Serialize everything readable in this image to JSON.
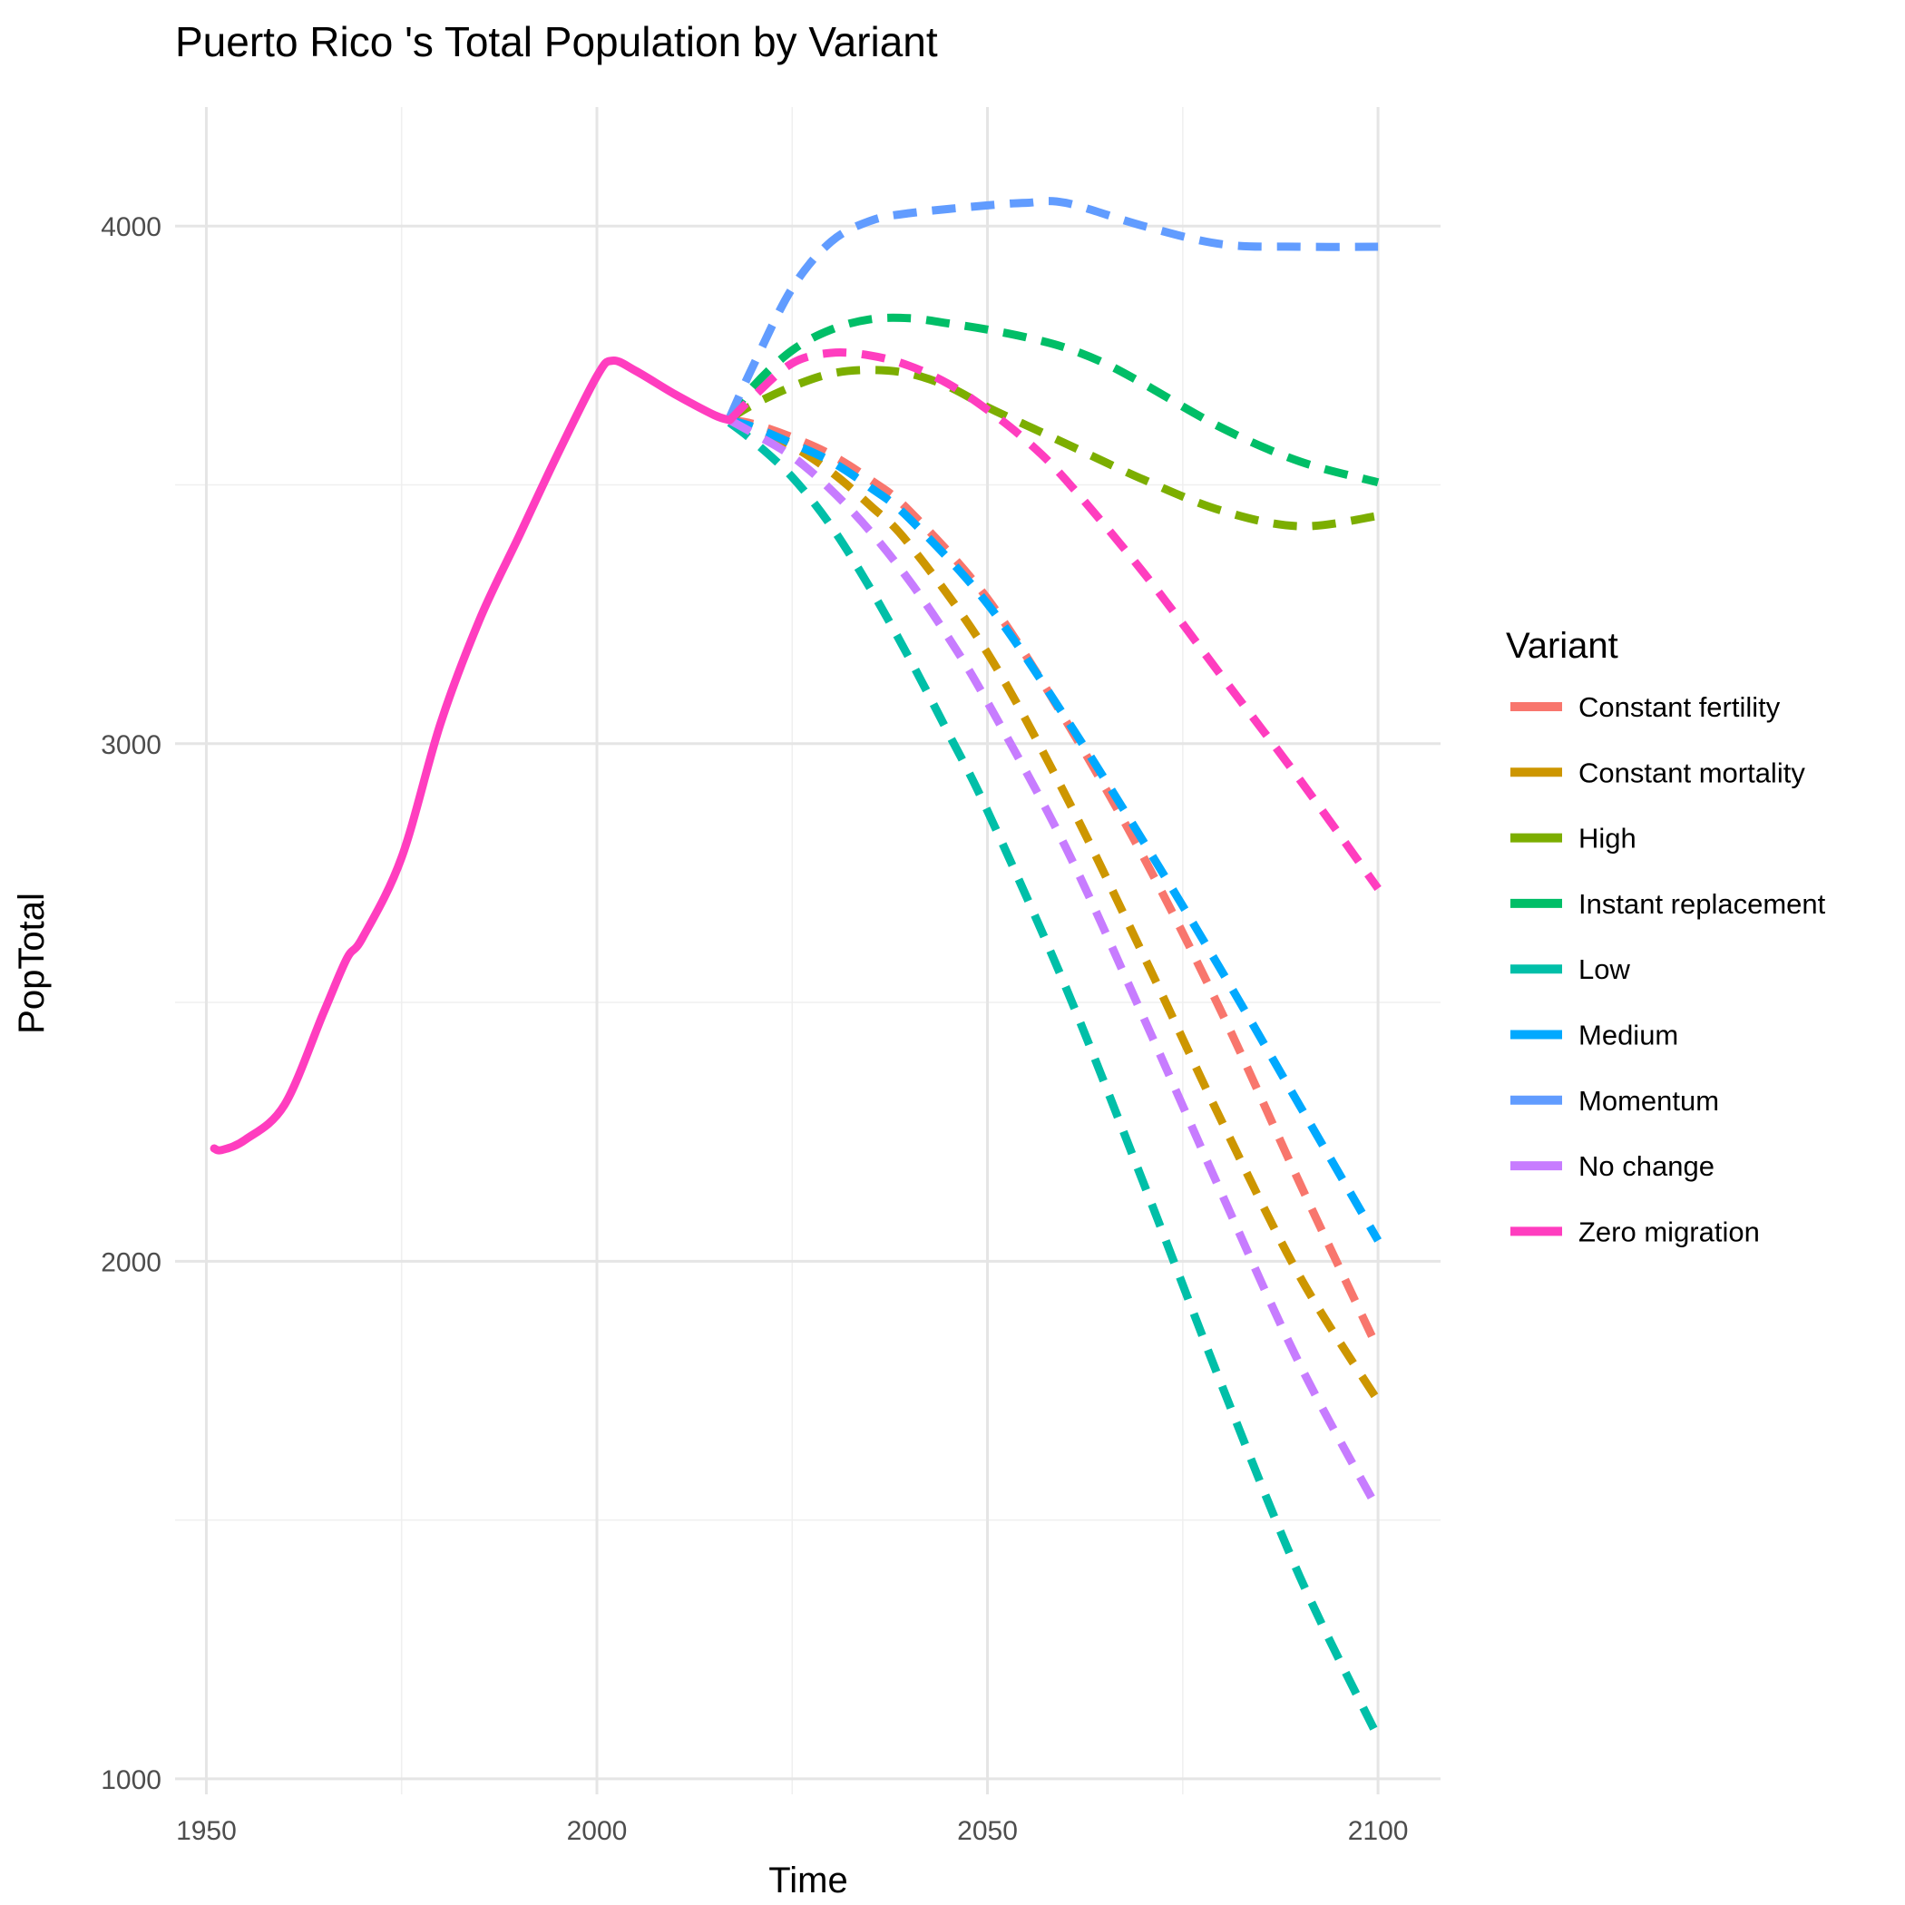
{
  "chart_data": {
    "type": "line",
    "title": "Puerto Rico 's Total Population by Variant",
    "xlabel": "Time",
    "ylabel": "PopTotal",
    "xlim": [
      1946,
      2108
    ],
    "ylim": [
      970,
      4230
    ],
    "x_ticks": [
      1950,
      2000,
      2050,
      2100
    ],
    "y_ticks": [
      1000,
      2000,
      3000,
      4000
    ],
    "grid": true,
    "legend": {
      "title": "Variant",
      "placement": "right",
      "entries": [
        "Constant fertility",
        "Constant mortality",
        "High",
        "Instant replacement",
        "Low",
        "Medium",
        "Momentum",
        "No change",
        "Zero migration"
      ]
    },
    "history": {
      "name": "Zero migration",
      "color": "#FF3DBF",
      "x": [
        1951,
        1952,
        1955,
        1960,
        1965,
        1968,
        1970,
        1975,
        1980,
        1985,
        1990,
        1995,
        2000,
        2002,
        2005,
        2010,
        2015,
        2017
      ],
      "y": [
        2218,
        2215,
        2235,
        2302,
        2480,
        2585,
        2625,
        2780,
        3040,
        3240,
        3400,
        3560,
        3710,
        3740,
        3720,
        3675,
        3635,
        3625
      ]
    },
    "series": [
      {
        "name": "Constant fertility",
        "color": "#F8766D",
        "x": [
          2017,
          2020,
          2025,
          2030,
          2035,
          2040,
          2050,
          2060,
          2070,
          2080,
          2090,
          2100
        ],
        "y": [
          3625,
          3618,
          3592,
          3558,
          3510,
          3450,
          3280,
          3045,
          2780,
          2480,
          2150,
          1830
        ]
      },
      {
        "name": "Constant mortality",
        "color": "#CD9600",
        "x": [
          2017,
          2020,
          2025,
          2030,
          2035,
          2040,
          2050,
          2060,
          2070,
          2080,
          2090,
          2100
        ],
        "y": [
          3625,
          3610,
          3575,
          3525,
          3460,
          3385,
          3175,
          2900,
          2590,
          2270,
          1970,
          1730
        ]
      },
      {
        "name": "High",
        "color": "#7CAE00",
        "x": [
          2017,
          2020,
          2025,
          2030,
          2035,
          2040,
          2045,
          2050,
          2055,
          2060,
          2070,
          2080,
          2090,
          2100
        ],
        "y": [
          3628,
          3655,
          3690,
          3715,
          3722,
          3715,
          3690,
          3650,
          3615,
          3580,
          3510,
          3450,
          3420,
          3440
        ]
      },
      {
        "name": "Instant replacement",
        "color": "#00BE67",
        "x": [
          2017,
          2020,
          2025,
          2030,
          2035,
          2040,
          2045,
          2050,
          2055,
          2060,
          2065,
          2070,
          2080,
          2090,
          2100
        ],
        "y": [
          3628,
          3690,
          3760,
          3800,
          3820,
          3822,
          3812,
          3800,
          3785,
          3765,
          3735,
          3695,
          3610,
          3545,
          3505
        ]
      },
      {
        "name": "Low",
        "color": "#00BFA8",
        "x": [
          2017,
          2020,
          2025,
          2030,
          2035,
          2040,
          2045,
          2050,
          2060,
          2070,
          2080,
          2090,
          2100
        ],
        "y": [
          3620,
          3585,
          3515,
          3420,
          3300,
          3165,
          3020,
          2870,
          2530,
          2150,
          1760,
          1390,
          1080
        ]
      },
      {
        "name": "Medium",
        "color": "#00A9FF",
        "x": [
          2017,
          2020,
          2025,
          2030,
          2035,
          2040,
          2050,
          2060,
          2070,
          2080,
          2090,
          2100
        ],
        "y": [
          3625,
          3612,
          3580,
          3545,
          3495,
          3435,
          3270,
          3050,
          2810,
          2560,
          2300,
          2040
        ]
      },
      {
        "name": "Momentum",
        "color": "#619CFF",
        "x": [
          2017,
          2020,
          2025,
          2030,
          2035,
          2040,
          2050,
          2055,
          2060,
          2070,
          2080,
          2090,
          2100
        ],
        "y": [
          3630,
          3730,
          3880,
          3970,
          4010,
          4025,
          4040,
          4045,
          4045,
          4000,
          3965,
          3960,
          3960
        ]
      },
      {
        "name": "No change",
        "color": "#C77CFF",
        "x": [
          2017,
          2020,
          2025,
          2030,
          2035,
          2040,
          2045,
          2050,
          2060,
          2070,
          2080,
          2090,
          2100
        ],
        "y": [
          3625,
          3600,
          3555,
          3490,
          3410,
          3315,
          3205,
          3080,
          2800,
          2470,
          2130,
          1800,
          1520
        ]
      },
      {
        "name": "Zero migration",
        "color": "#FF3DBF",
        "x": [
          2017,
          2020,
          2025,
          2030,
          2035,
          2040,
          2045,
          2050,
          2055,
          2060,
          2070,
          2080,
          2090,
          2100
        ],
        "y": [
          3625,
          3670,
          3735,
          3755,
          3750,
          3730,
          3695,
          3645,
          3585,
          3510,
          3330,
          3130,
          2930,
          2720
        ]
      }
    ]
  }
}
